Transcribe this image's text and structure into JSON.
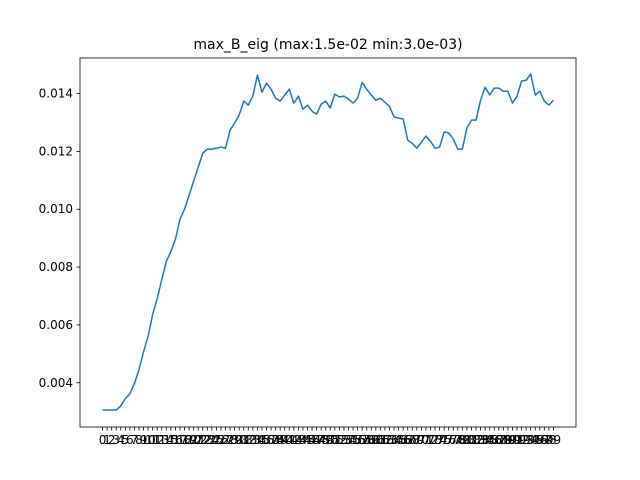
{
  "chart_data": {
    "type": "line",
    "title": "max_B_eig (max:1.5e-02 min:3.0e-03)",
    "x": [
      0,
      1,
      2,
      3,
      4,
      5,
      6,
      7,
      8,
      9,
      10,
      11,
      12,
      13,
      14,
      15,
      16,
      17,
      18,
      19,
      20,
      21,
      22,
      23,
      24,
      25,
      26,
      27,
      28,
      29,
      30,
      31,
      32,
      33,
      34,
      35,
      36,
      37,
      38,
      39,
      40,
      41,
      42,
      43,
      44,
      45,
      46,
      47,
      48,
      49,
      50,
      51,
      52,
      53,
      54,
      55,
      56,
      57,
      58,
      59,
      60,
      61,
      62,
      63,
      64,
      65,
      66,
      67,
      68,
      69,
      70,
      71,
      72,
      73,
      74,
      75,
      76,
      77,
      78,
      79,
      80,
      81,
      82,
      83,
      84,
      85,
      86,
      87,
      88,
      89,
      90,
      91,
      92,
      93,
      94,
      95,
      96,
      97,
      98,
      99
    ],
    "values": [
      0.00306,
      0.00306,
      0.00306,
      0.00306,
      0.0032,
      0.00345,
      0.00362,
      0.00397,
      0.00445,
      0.00507,
      0.0056,
      0.00636,
      0.00691,
      0.00757,
      0.00819,
      0.00854,
      0.00896,
      0.00965,
      0.01,
      0.01048,
      0.01097,
      0.01145,
      0.01194,
      0.01208,
      0.01208,
      0.01211,
      0.01215,
      0.01211,
      0.01274,
      0.01298,
      0.01326,
      0.01374,
      0.0136,
      0.01391,
      0.01464,
      0.01405,
      0.01436,
      0.01415,
      0.01384,
      0.01374,
      0.01395,
      0.01415,
      0.01367,
      0.01391,
      0.01346,
      0.0136,
      0.01339,
      0.01329,
      0.01363,
      0.01374,
      0.0135,
      0.01398,
      0.01388,
      0.01391,
      0.01381,
      0.01367,
      0.01384,
      0.01439,
      0.01415,
      0.01395,
      0.01377,
      0.01384,
      0.0137,
      0.01356,
      0.01319,
      0.01315,
      0.01312,
      0.01239,
      0.01228,
      0.01211,
      0.01232,
      0.01253,
      0.01235,
      0.01211,
      0.01215,
      0.01267,
      0.01264,
      0.01243,
      0.01208,
      0.01208,
      0.01281,
      0.01308,
      0.01308,
      0.01377,
      0.01422,
      0.01395,
      0.01419,
      0.01419,
      0.01408,
      0.01408,
      0.01367,
      0.01391,
      0.01443,
      0.01446,
      0.01468,
      0.01395,
      0.01408,
      0.01374,
      0.0136,
      0.01377
    ],
    "color": "#1f77b4",
    "xlim": [
      -4.95,
      103.95
    ],
    "ylim": [
      0.00247,
      0.01523
    ],
    "yticks": [
      0.004,
      0.006,
      0.008,
      {
        "value": 0.01,
        "label": "0.010"
      },
      0.012,
      0.014
    ]
  }
}
